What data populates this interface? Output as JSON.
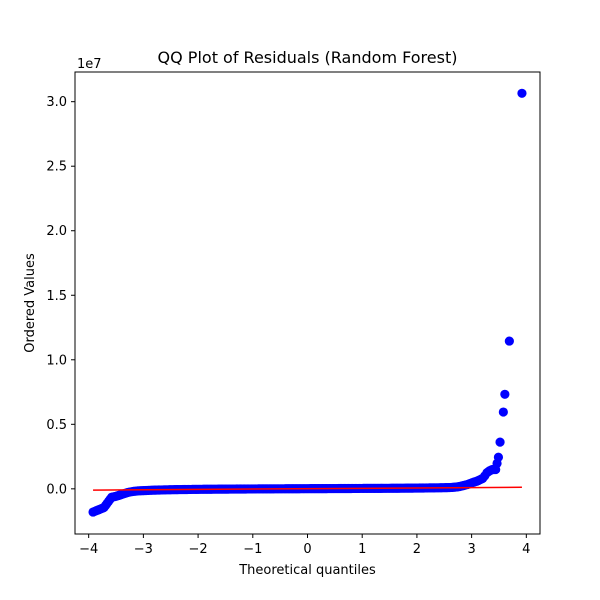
{
  "chart_data": {
    "type": "scatter",
    "title": "QQ Plot of Residuals (Random Forest)",
    "xlabel": "Theoretical quantiles",
    "ylabel": "Ordered Values",
    "offset_label": "1e7",
    "xlim": [
      -4.25,
      4.25
    ],
    "ylim": [
      -3500000,
      32300000
    ],
    "xticks": [
      -4,
      -3,
      -2,
      -1,
      0,
      1,
      2,
      3,
      4
    ],
    "xtick_labels": [
      "−4",
      "−3",
      "−2",
      "−1",
      "0",
      "1",
      "2",
      "3",
      "4"
    ],
    "yticks": [
      0,
      5000000,
      10000000,
      15000000,
      20000000,
      25000000,
      30000000
    ],
    "ytick_labels": [
      "0.0",
      "0.5",
      "1.0",
      "1.5",
      "2.0",
      "2.5",
      "3.0"
    ],
    "grid": false,
    "series": [
      {
        "kind": "points",
        "color": "#0000ff",
        "points": [
          [
            -3.92,
            -1800000
          ],
          [
            -3.72,
            -1450000
          ],
          [
            -3.58,
            -650000
          ],
          [
            -3.5,
            -580000
          ],
          [
            -3.43,
            -480000
          ],
          [
            -3.36,
            -380000
          ],
          [
            -3.3,
            -300000
          ],
          [
            -3.24,
            -240000
          ],
          [
            -3.18,
            -200000
          ],
          [
            -3.1,
            -160000
          ],
          [
            -3.0,
            -140000
          ],
          [
            -2.9,
            -120000
          ],
          [
            -2.8,
            -100000
          ],
          [
            -2.7,
            -90000
          ],
          [
            -2.6,
            -80000
          ],
          [
            -2.5,
            -70000
          ],
          [
            -2.4,
            -60000
          ],
          [
            -2.3,
            -55000
          ],
          [
            -2.2,
            -50000
          ],
          [
            -2.1,
            -45000
          ],
          [
            -2.0,
            -40000
          ],
          [
            -1.9,
            -35000
          ],
          [
            -1.8,
            -32000
          ],
          [
            -1.7,
            -28000
          ],
          [
            -1.6,
            -25000
          ],
          [
            -1.5,
            -22000
          ],
          [
            -1.4,
            -18000
          ],
          [
            -1.3,
            -15000
          ],
          [
            -1.2,
            -12000
          ],
          [
            -1.1,
            -10000
          ],
          [
            -1.0,
            -8000
          ],
          [
            -0.9,
            -6000
          ],
          [
            -0.8,
            -4000
          ],
          [
            -0.7,
            -2000
          ],
          [
            -0.6,
            0
          ],
          [
            -0.5,
            2000
          ],
          [
            -0.4,
            4000
          ],
          [
            -0.3,
            6000
          ],
          [
            -0.2,
            8000
          ],
          [
            -0.1,
            10000
          ],
          [
            0.0,
            12000
          ],
          [
            0.1,
            14000
          ],
          [
            0.2,
            16000
          ],
          [
            0.3,
            18000
          ],
          [
            0.4,
            20000
          ],
          [
            0.5,
            22000
          ],
          [
            0.6,
            24000
          ],
          [
            0.7,
            26000
          ],
          [
            0.8,
            28000
          ],
          [
            0.9,
            30000
          ],
          [
            1.0,
            32000
          ],
          [
            1.1,
            34000
          ],
          [
            1.2,
            36000
          ],
          [
            1.3,
            38000
          ],
          [
            1.4,
            40000
          ],
          [
            1.5,
            42000
          ],
          [
            1.6,
            45000
          ],
          [
            1.7,
            48000
          ],
          [
            1.8,
            52000
          ],
          [
            1.9,
            56000
          ],
          [
            2.0,
            60000
          ],
          [
            2.1,
            65000
          ],
          [
            2.2,
            70000
          ],
          [
            2.3,
            75000
          ],
          [
            2.4,
            80000
          ],
          [
            2.5,
            90000
          ],
          [
            2.6,
            100000
          ],
          [
            2.7,
            130000
          ],
          [
            2.78,
            180000
          ],
          [
            2.85,
            250000
          ],
          [
            2.92,
            330000
          ],
          [
            2.98,
            420000
          ],
          [
            3.04,
            520000
          ],
          [
            3.1,
            600000
          ],
          [
            3.15,
            700000
          ],
          [
            3.2,
            800000
          ],
          [
            3.24,
            1000000
          ],
          [
            3.28,
            1250000
          ],
          [
            3.33,
            1400000
          ],
          [
            3.38,
            1500000
          ],
          [
            3.44,
            1500000
          ],
          [
            3.49,
            2450000
          ],
          [
            3.58,
            5950000
          ],
          [
            3.69,
            11450000
          ],
          [
            3.92,
            30650000
          ]
        ]
      },
      {
        "kind": "fit-line",
        "color": "#ff0000",
        "points": [
          [
            -3.92,
            -100000
          ],
          [
            3.92,
            120000
          ]
        ]
      }
    ]
  }
}
